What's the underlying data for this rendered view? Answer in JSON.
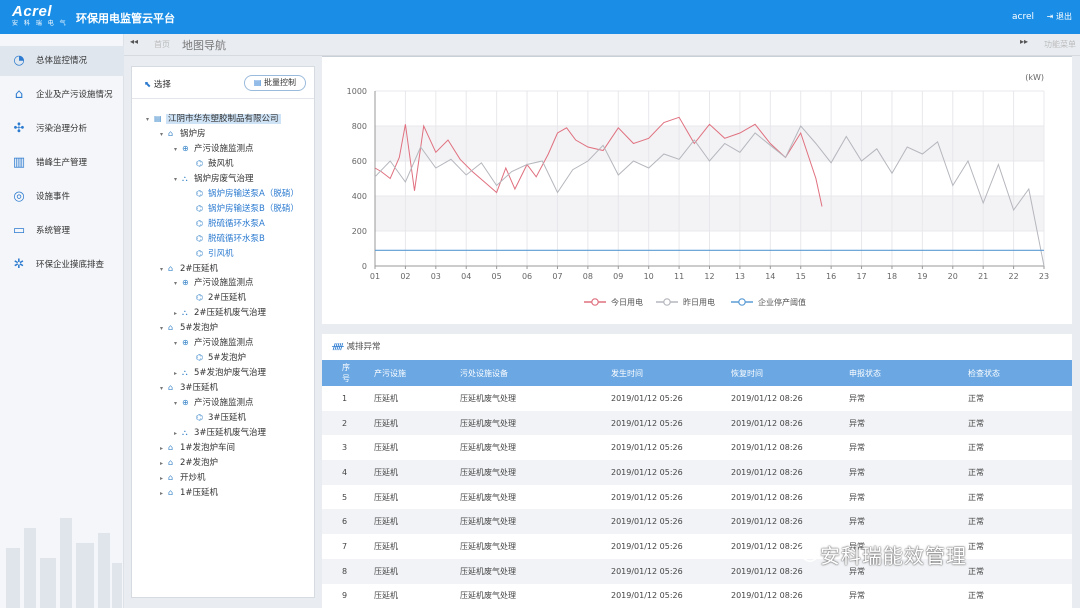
{
  "header": {
    "logo_text": "Acrel",
    "logo_sub": "安 科 瑞 电 气",
    "title": "环保用电监管云平台",
    "user": "acrel",
    "logout": "退出"
  },
  "sidebar": {
    "items": [
      {
        "label": "总体监控情况",
        "icon": "dashboard-icon",
        "active": true
      },
      {
        "label": "企业及产污设施情况",
        "icon": "factory-icon"
      },
      {
        "label": "污染治理分析",
        "icon": "gear-analysis-icon"
      },
      {
        "label": "错峰生产管理",
        "icon": "industry-icon"
      },
      {
        "label": "设施事件",
        "icon": "broadcast-icon"
      },
      {
        "label": "系统管理",
        "icon": "monitor-icon"
      },
      {
        "label": "环保企业摸底排查",
        "icon": "settings-icon"
      }
    ]
  },
  "tabs": {
    "prev": "◂◂",
    "home": "首页",
    "active": "地图导航",
    "next": "▸▸",
    "menu": "功能菜单"
  },
  "tree": {
    "select_label": "选择",
    "batch_button": "批量控制",
    "nodes": [
      {
        "label": "江阴市华东塑胶制品有限公司",
        "level": 0,
        "toggle": "▾",
        "icon": "company-icon",
        "selected": true
      },
      {
        "label": "锅炉房",
        "level": 1,
        "toggle": "▾",
        "icon": "building-icon"
      },
      {
        "label": "产污设施监测点",
        "level": 2,
        "toggle": "▾",
        "icon": "monitor-point-icon"
      },
      {
        "label": "鼓风机",
        "level": 3,
        "toggle": "",
        "icon": "device-icon"
      },
      {
        "label": "锅炉房废气治理",
        "level": 2,
        "toggle": "▾",
        "icon": "treatment-icon"
      },
      {
        "label": "锅炉房输送泵A（脱硝）",
        "level": 3,
        "toggle": "",
        "icon": "device-icon",
        "blue": true
      },
      {
        "label": "锅炉房输送泵B（脱硝）",
        "level": 3,
        "toggle": "",
        "icon": "device-icon",
        "blue": true
      },
      {
        "label": "脱硫循环水泵A",
        "level": 3,
        "toggle": "",
        "icon": "device-icon",
        "blue": true
      },
      {
        "label": "脱硫循环水泵B",
        "level": 3,
        "toggle": "",
        "icon": "device-icon",
        "blue": true
      },
      {
        "label": "引风机",
        "level": 3,
        "toggle": "",
        "icon": "device-icon",
        "blue": true
      },
      {
        "label": "2#压延机",
        "level": 1,
        "toggle": "▾",
        "icon": "building-icon"
      },
      {
        "label": "产污设施监测点",
        "level": 2,
        "toggle": "▾",
        "icon": "monitor-point-icon"
      },
      {
        "label": "2#压延机",
        "level": 3,
        "toggle": "",
        "icon": "device-icon"
      },
      {
        "label": "2#压延机废气治理",
        "level": 2,
        "toggle": "▸",
        "icon": "treatment-icon"
      },
      {
        "label": "5#发泡炉",
        "level": 1,
        "toggle": "▾",
        "icon": "building-icon"
      },
      {
        "label": "产污设施监测点",
        "level": 2,
        "toggle": "▾",
        "icon": "monitor-point-icon"
      },
      {
        "label": "5#发泡炉",
        "level": 3,
        "toggle": "",
        "icon": "device-icon"
      },
      {
        "label": "5#发泡炉废气治理",
        "level": 2,
        "toggle": "▸",
        "icon": "treatment-icon"
      },
      {
        "label": "3#压延机",
        "level": 1,
        "toggle": "▾",
        "icon": "building-icon"
      },
      {
        "label": "产污设施监测点",
        "level": 2,
        "toggle": "▾",
        "icon": "monitor-point-icon"
      },
      {
        "label": "3#压延机",
        "level": 3,
        "toggle": "",
        "icon": "device-icon"
      },
      {
        "label": "3#压延机废气治理",
        "level": 2,
        "toggle": "▸",
        "icon": "treatment-icon"
      },
      {
        "label": "1#发泡炉车间",
        "level": 1,
        "toggle": "▸",
        "icon": "building-icon"
      },
      {
        "label": "2#发泡炉",
        "level": 1,
        "toggle": "▸",
        "icon": "building-icon"
      },
      {
        "label": "开炒机",
        "level": 1,
        "toggle": "▸",
        "icon": "building-icon"
      },
      {
        "label": "1#压延机",
        "level": 1,
        "toggle": "▸",
        "icon": "building-icon"
      }
    ]
  },
  "chart_data": {
    "type": "line",
    "unit": "(kW)",
    "ylim": [
      0,
      1000
    ],
    "yticks": [
      0,
      200,
      400,
      600,
      800,
      1000
    ],
    "x_labels": [
      "01",
      "02",
      "03",
      "04",
      "05",
      "06",
      "07",
      "08",
      "09",
      "10",
      "11",
      "12",
      "13",
      "14",
      "15",
      "16",
      "17",
      "18",
      "19",
      "20",
      "21",
      "22",
      "23"
    ],
    "xlim": [
      1,
      23
    ],
    "series": [
      {
        "name": "今日用电",
        "color": "#e0707f",
        "x": [
          1.0,
          1.2,
          1.5,
          1.8,
          2.0,
          2.3,
          2.6,
          3.0,
          3.4,
          3.8,
          4.2,
          4.6,
          5.0,
          5.3,
          5.6,
          6.0,
          6.3,
          6.7,
          7.0,
          7.3,
          7.6,
          8.0,
          8.5,
          9.0,
          9.5,
          10.0,
          10.5,
          11.0,
          11.5,
          12.0,
          12.5,
          13.0,
          13.5,
          14.0,
          14.5,
          15.0,
          15.5,
          15.7
        ],
        "y": [
          560,
          540,
          500,
          620,
          810,
          430,
          800,
          650,
          720,
          610,
          540,
          480,
          420,
          560,
          440,
          580,
          510,
          640,
          760,
          790,
          720,
          680,
          660,
          790,
          700,
          730,
          820,
          850,
          700,
          810,
          730,
          760,
          810,
          700,
          620,
          760,
          500,
          340
        ]
      },
      {
        "name": "昨日用电",
        "color": "#b5b7bd",
        "x": [
          1.0,
          1.5,
          2.0,
          2.5,
          3.0,
          3.5,
          4.0,
          4.5,
          5.0,
          5.5,
          6.0,
          6.5,
          7.0,
          7.5,
          8.0,
          8.5,
          9.0,
          9.5,
          10.0,
          10.5,
          11.0,
          11.5,
          12.0,
          12.5,
          13.0,
          13.5,
          14.0,
          14.5,
          15.0,
          15.5,
          16.0,
          16.5,
          17.0,
          17.5,
          18.0,
          18.5,
          19.0,
          19.5,
          20.0,
          20.5,
          21.0,
          21.5,
          22.0,
          22.5,
          23.0
        ],
        "y": [
          510,
          600,
          480,
          680,
          560,
          610,
          520,
          590,
          460,
          540,
          580,
          600,
          420,
          550,
          600,
          690,
          520,
          600,
          560,
          640,
          610,
          720,
          600,
          700,
          650,
          760,
          690,
          620,
          800,
          700,
          590,
          740,
          600,
          670,
          530,
          680,
          640,
          710,
          460,
          600,
          360,
          580,
          320,
          440,
          0
        ]
      },
      {
        "name": "企业停产阈值",
        "color": "#5b9bd5",
        "x": [
          1,
          23
        ],
        "y": [
          90,
          90
        ]
      }
    ],
    "bands": [
      [
        600,
        800
      ],
      [
        200,
        400
      ]
    ]
  },
  "alarm": {
    "title": "减排异常",
    "columns": [
      "序号",
      "产污设施",
      "污处设施设备",
      "发生时间",
      "恢复时间",
      "申报状态",
      "检查状态"
    ],
    "rows": [
      [
        "1",
        "压延机",
        "压延机废气处理",
        "2019/01/12  05:26",
        "2019/01/12  08:26",
        "异常",
        "正常"
      ],
      [
        "2",
        "压延机",
        "压延机废气处理",
        "2019/01/12  05:26",
        "2019/01/12  08:26",
        "异常",
        "正常"
      ],
      [
        "3",
        "压延机",
        "压延机废气处理",
        "2019/01/12  05:26",
        "2019/01/12  08:26",
        "异常",
        "正常"
      ],
      [
        "4",
        "压延机",
        "压延机废气处理",
        "2019/01/12  05:26",
        "2019/01/12  08:26",
        "异常",
        "正常"
      ],
      [
        "5",
        "压延机",
        "压延机废气处理",
        "2019/01/12  05:26",
        "2019/01/12  08:26",
        "异常",
        "正常"
      ],
      [
        "6",
        "压延机",
        "压延机废气处理",
        "2019/01/12  05:26",
        "2019/01/12  08:26",
        "异常",
        "正常"
      ],
      [
        "7",
        "压延机",
        "压延机废气处理",
        "2019/01/12  05:26",
        "2019/01/12  08:26",
        "异常",
        "正常"
      ],
      [
        "8",
        "压延机",
        "压延机废气处理",
        "2019/01/12  05:26",
        "2019/01/12  08:26",
        "异常",
        "正常"
      ],
      [
        "9",
        "压延机",
        "压延机废气处理",
        "2019/01/12  05:26",
        "2019/01/12  08:26",
        "异常",
        "正常"
      ]
    ]
  },
  "watermark": "安科瑞能效管理"
}
